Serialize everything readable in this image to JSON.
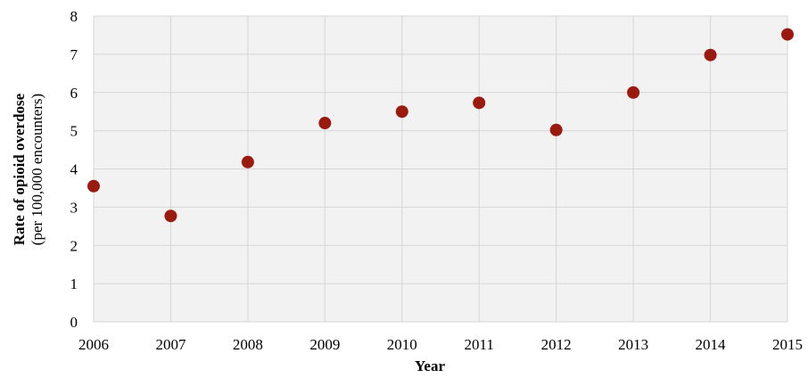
{
  "chart_data": {
    "type": "scatter",
    "title": "",
    "xlabel": "Year",
    "ylabel_line1": "Rate of opioid overdose",
    "ylabel_line2": "(per 100,000 encounters)",
    "x": [
      2006,
      2007,
      2008,
      2009,
      2010,
      2011,
      2012,
      2013,
      2014,
      2015
    ],
    "y": [
      3.55,
      2.77,
      4.18,
      5.2,
      5.5,
      5.73,
      5.02,
      6.0,
      6.98,
      7.52
    ],
    "xlim": [
      2006,
      2015
    ],
    "ylim": [
      0,
      8
    ],
    "yticks": [
      "0",
      "1",
      "2",
      "3",
      "4",
      "5",
      "6",
      "7",
      "8"
    ],
    "xticks": [
      "2006",
      "2007",
      "2008",
      "2009",
      "2010",
      "2011",
      "2012",
      "2013",
      "2014",
      "2015"
    ],
    "grid": true,
    "legend": "none",
    "colors": {
      "marker": "#9b1a10",
      "plot_background": "#f2f2f2",
      "grid": "#d6d6d6"
    }
  }
}
